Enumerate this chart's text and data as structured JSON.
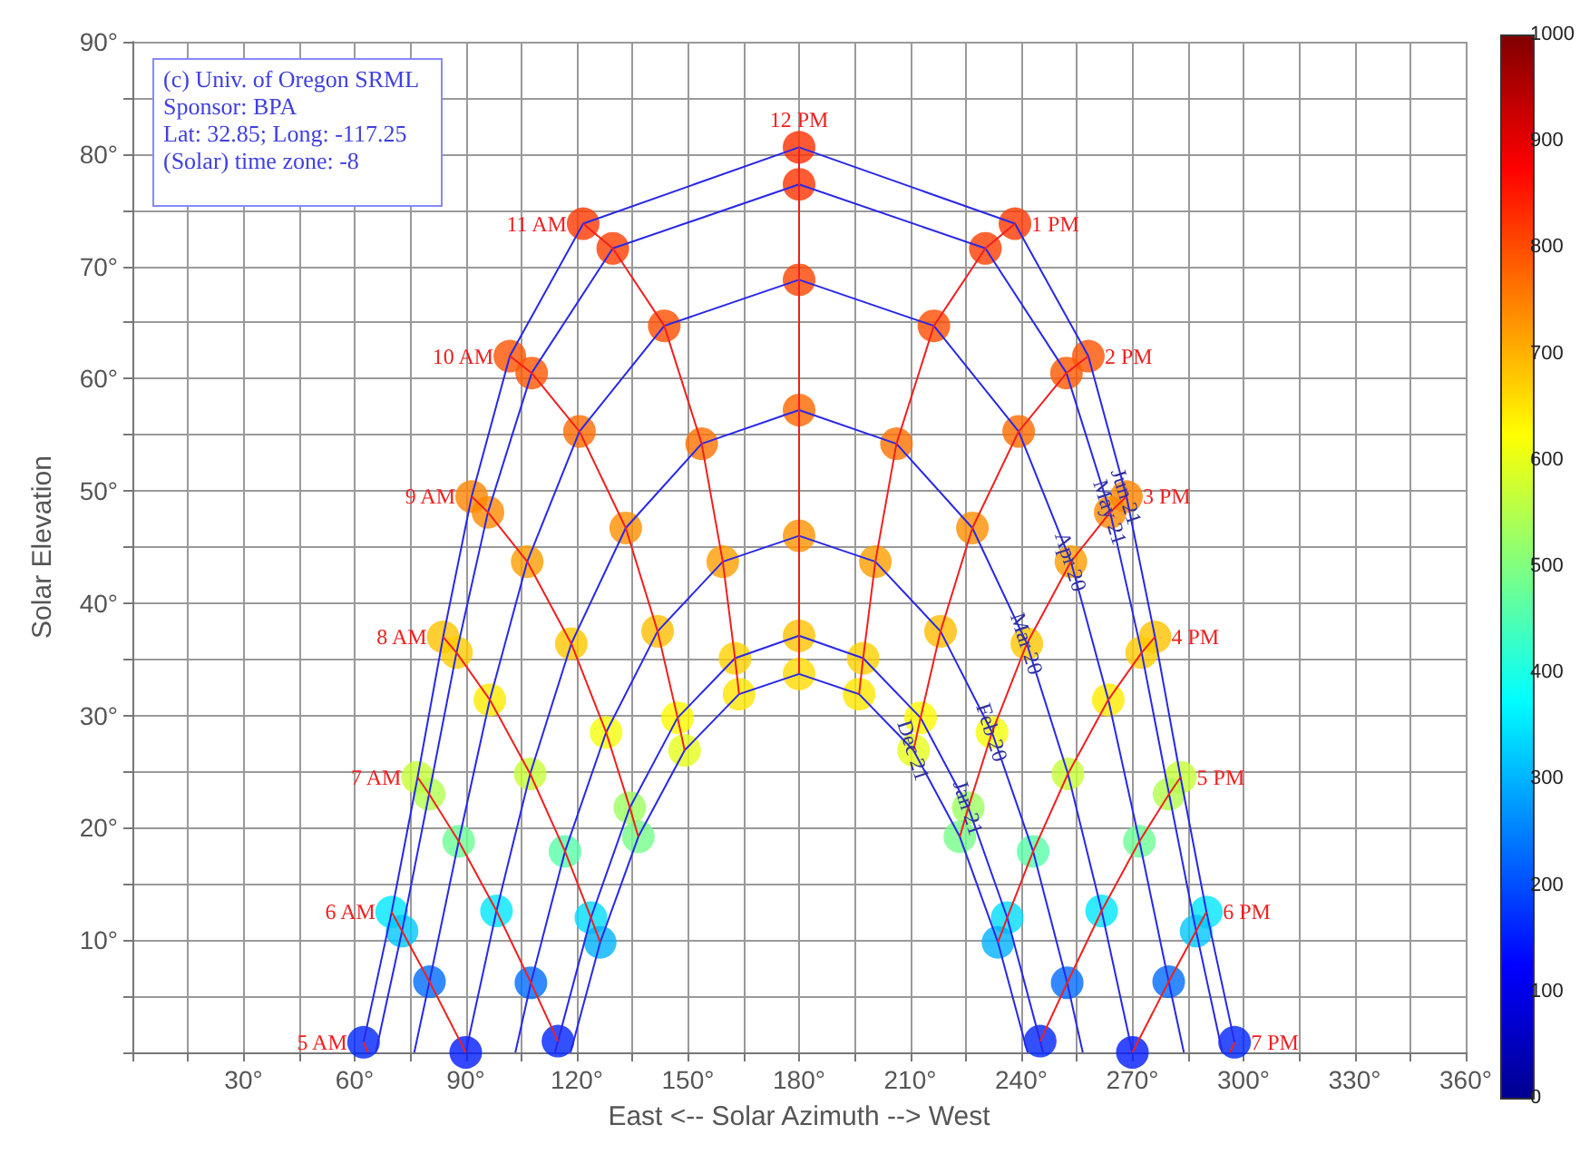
{
  "chart_data": {
    "type": "line",
    "xlabel": "East <-- Solar Azimuth --> West",
    "ylabel": "Solar Elevation",
    "annotations": [
      "(c) Univ. of Oregon SRML",
      "Sponsor: BPA",
      "Lat: 32.85; Long: -117.25",
      "(Solar) time zone: -8"
    ],
    "xlim": [
      0,
      360
    ],
    "xticks": [
      {
        "value": 0,
        "label": null
      },
      {
        "value": 15,
        "label": null
      },
      {
        "value": 30,
        "label": "30°"
      },
      {
        "value": 45,
        "label": null
      },
      {
        "value": 60,
        "label": "60°"
      },
      {
        "value": 75,
        "label": null
      },
      {
        "value": 90,
        "label": "90°"
      },
      {
        "value": 105,
        "label": null
      },
      {
        "value": 120,
        "label": "120°"
      },
      {
        "value": 135,
        "label": null
      },
      {
        "value": 150,
        "label": "150°"
      },
      {
        "value": 165,
        "label": null
      },
      {
        "value": 180,
        "label": "180°"
      },
      {
        "value": 195,
        "label": null
      },
      {
        "value": 210,
        "label": "210°"
      },
      {
        "value": 225,
        "label": null
      },
      {
        "value": 240,
        "label": "240°"
      },
      {
        "value": 255,
        "label": null
      },
      {
        "value": 270,
        "label": "270°"
      },
      {
        "value": 285,
        "label": null
      },
      {
        "value": 300,
        "label": "300°"
      },
      {
        "value": 315,
        "label": null
      },
      {
        "value": 330,
        "label": "330°"
      },
      {
        "value": 345,
        "label": null
      },
      {
        "value": 360,
        "label": "360°"
      }
    ],
    "ylim": [
      0,
      90
    ],
    "yticks": [
      {
        "value": 0,
        "label": null
      },
      {
        "value": 5,
        "label": null
      },
      {
        "value": 10,
        "label": "10°"
      },
      {
        "value": 15,
        "label": null
      },
      {
        "value": 20,
        "label": "20°"
      },
      {
        "value": 25,
        "label": null
      },
      {
        "value": 30,
        "label": "30°"
      },
      {
        "value": 35,
        "label": null
      },
      {
        "value": 40,
        "label": "40°"
      },
      {
        "value": 45,
        "label": null
      },
      {
        "value": 50,
        "label": "50°"
      },
      {
        "value": 55,
        "label": null
      },
      {
        "value": 60,
        "label": "60°"
      },
      {
        "value": 65,
        "label": null
      },
      {
        "value": 70,
        "label": "70°"
      },
      {
        "value": 75,
        "label": null
      },
      {
        "value": 80,
        "label": "80°"
      },
      {
        "value": 85,
        "label": null
      },
      {
        "value": 90,
        "label": "90°"
      }
    ],
    "clim": [
      0,
      1000
    ],
    "cticks": [
      0,
      100,
      200,
      300,
      400,
      500,
      600,
      700,
      800,
      900,
      1000
    ],
    "grid": true,
    "legend": false,
    "marker": "none",
    "line_style": "solid",
    "series": [
      {
        "type": "scatter",
        "marker": "circle",
        "x": [
          62.4,
          70.0,
          72.8,
          80.2,
          90,
          77.0,
          80.1,
          88.1,
          98.3,
          107.6,
          114.9,
          83.9,
          87.5,
          96.5,
          107.4,
          116.8,
          123.8,
          126.3,
          91.6,
          96.0,
          106.6,
          118.5,
          127.9,
          134.3,
          136.6,
          101.9,
          107.8,
          120.7,
          133.2,
          141.8,
          147.2,
          149.1,
          121.7,
          129.7,
          143.6,
          153.7,
          159.4,
          162.7,
          163.8,
          180,
          180,
          180,
          180,
          180,
          180,
          180,
          238.3,
          230.3,
          216.4,
          206.3,
          200.6,
          197.3,
          196.2,
          258.1,
          252.2,
          239.3,
          226.8,
          218.2,
          212.8,
          210.9,
          268.4,
          264.0,
          253.4,
          241.5,
          232.1,
          225.7,
          223.4,
          276.1,
          272.5,
          263.5,
          252.6,
          243.2,
          236.2,
          233.7,
          283.0,
          279.9,
          271.9,
          261.7,
          252.4,
          245.1,
          290.0,
          287.2,
          279.8,
          270.0,
          297.6
        ],
        "values": [
          0.9,
          12.5,
          10.8,
          6.3,
          0,
          24.5,
          23.0,
          18.8,
          12.6,
          6.2,
          1.0,
          37.0,
          35.6,
          31.4,
          24.8,
          17.9,
          12.0,
          9.8,
          49.5,
          48.1,
          43.7,
          36.4,
          28.5,
          21.8,
          19.2,
          62.0,
          60.5,
          55.3,
          46.7,
          37.5,
          29.8,
          26.9,
          73.8,
          71.6,
          64.7,
          54.2,
          43.7,
          35.1,
          31.9,
          80.6,
          77.3,
          68.8,
          57.2,
          46.0,
          37.1,
          33.7,
          73.8,
          71.6,
          64.7,
          54.2,
          43.7,
          35.1,
          31.9,
          62.0,
          60.5,
          55.3,
          46.7,
          37.5,
          29.8,
          26.9,
          49.5,
          48.1,
          43.7,
          36.4,
          28.5,
          21.8,
          19.2,
          37.0,
          35.6,
          31.4,
          24.8,
          17.9,
          12.0,
          9.8,
          24.5,
          23.0,
          18.8,
          12.6,
          6.2,
          1.0,
          12.5,
          10.8,
          6.3,
          0,
          0.9
        ],
        "colors": [
          "#0024ff",
          "#00e6ff",
          "#00c7ff",
          "#006cff",
          "#001aff",
          "#c7ff38",
          "#b3ff4d",
          "#6cff94",
          "#00e6ff",
          "#006cff",
          "#0024ff",
          "#ffc200",
          "#ffcc00",
          "#ffeb00",
          "#c7ff38",
          "#57ffa9",
          "#00dcff",
          "#00b3ff",
          "#ff8500",
          "#ff8a00",
          "#ff9e00",
          "#ffc700",
          "#f5ff0a",
          "#9eff61",
          "#76ff8a",
          "#ff5200",
          "#ff5700",
          "#ff6c00",
          "#ff8f00",
          "#ffbd00",
          "#fffa00",
          "#e6ff1a",
          "#ff3800",
          "#ff3d00",
          "#ff4d00",
          "#ff7100",
          "#ff9e00",
          "#ffd100",
          "#ffe600",
          "#ff2e00",
          "#ff3300",
          "#ff4300",
          "#ff6600",
          "#ff9400",
          "#ffc200",
          "#ffdb00",
          "#ff3800",
          "#ff3d00",
          "#ff4d00",
          "#ff7100",
          "#ff9e00",
          "#ffd100",
          "#ffe600",
          "#ff5200",
          "#ff5700",
          "#ff6c00",
          "#ff8f00",
          "#ffbd00",
          "#fffa00",
          "#e6ff1a",
          "#ff8500",
          "#ff8a00",
          "#ff9e00",
          "#ffc700",
          "#f5ff0a",
          "#9eff61",
          "#76ff8a",
          "#ffc200",
          "#ffcc00",
          "#ffeb00",
          "#c7ff38",
          "#57ffa9",
          "#00dcff",
          "#00b3ff",
          "#c7ff38",
          "#b3ff4d",
          "#6cff94",
          "#00e6ff",
          "#006cff",
          "#0024ff",
          "#00e6ff",
          "#00c7ff",
          "#006cff",
          "#001aff",
          "#0024ff"
        ]
      },
      {
        "name": "Jun 21",
        "color": "#2828e8",
        "x": [
          62.4,
          70.0,
          77.0,
          83.9,
          91.6,
          101.9,
          121.7,
          180,
          238.3,
          258.1,
          268.4,
          276.1,
          283.0,
          290.0,
          297.6
        ],
        "values": [
          0.9,
          12.5,
          24.5,
          37.0,
          49.5,
          62.0,
          73.8,
          80.6,
          73.8,
          62.0,
          49.5,
          37.0,
          24.5,
          12.5,
          0.9
        ]
      },
      {
        "name": "May 21",
        "color": "#2828e8",
        "x": [
          65.7,
          72.8,
          80.1,
          87.5,
          96.0,
          107.8,
          129.7,
          180,
          230.3,
          252.2,
          264.0,
          272.5,
          279.9,
          287.2,
          294.3
        ],
        "values": [
          0,
          10.8,
          23.0,
          35.6,
          48.1,
          60.5,
          71.6,
          77.3,
          71.6,
          60.5,
          48.1,
          35.6,
          23.0,
          10.8,
          0
        ]
      },
      {
        "name": "Apr 20",
        "color": "#2828e8",
        "x": [
          76.1,
          80.2,
          88.1,
          96.5,
          106.6,
          120.7,
          143.6,
          180,
          216.4,
          239.3,
          253.4,
          263.5,
          271.9,
          279.8,
          283.9
        ],
        "values": [
          0,
          6.3,
          18.8,
          31.4,
          43.7,
          55.3,
          64.7,
          68.8,
          64.7,
          55.3,
          43.7,
          31.4,
          18.8,
          6.3,
          0
        ]
      },
      {
        "name": "Mar 20",
        "color": "#2828e8",
        "x": [
          90,
          98.3,
          107.4,
          118.5,
          133.2,
          153.7,
          180,
          206.3,
          226.8,
          241.5,
          252.6,
          261.7,
          270
        ],
        "values": [
          0,
          12.6,
          24.8,
          36.4,
          46.7,
          54.2,
          57.2,
          54.2,
          46.7,
          36.4,
          24.8,
          12.6,
          0
        ]
      },
      {
        "name": "Feb 20",
        "color": "#2828e8",
        "x": [
          103.4,
          107.6,
          116.8,
          127.9,
          141.8,
          159.4,
          180,
          200.6,
          218.2,
          232.1,
          243.2,
          252.4,
          256.6
        ],
        "values": [
          0,
          6.2,
          17.9,
          28.5,
          37.5,
          43.7,
          46.0,
          43.7,
          37.5,
          28.5,
          17.9,
          6.2,
          0
        ]
      },
      {
        "name": "Jan 21",
        "color": "#2828e8",
        "x": [
          114.1,
          114.9,
          123.8,
          134.3,
          147.2,
          162.7,
          180,
          197.3,
          212.8,
          225.7,
          236.2,
          245.1,
          245.9
        ],
        "values": [
          0,
          1.0,
          12.0,
          21.8,
          29.8,
          35.1,
          37.1,
          35.1,
          29.8,
          21.8,
          12.0,
          1.0,
          0
        ]
      },
      {
        "name": "Dec 21",
        "color": "#2828e8",
        "x": [
          118.3,
          126.3,
          136.6,
          149.1,
          163.8,
          180,
          196.2,
          210.9,
          223.4,
          233.7,
          241.7
        ],
        "values": [
          0,
          9.8,
          19.2,
          26.9,
          31.9,
          33.7,
          31.9,
          26.9,
          19.2,
          9.8,
          0
        ]
      },
      {
        "name": "5 AM",
        "color": "#f02020",
        "x": [
          62.4,
          63.6
        ],
        "values": [
          0.9,
          0
        ]
      },
      {
        "name": "6 AM",
        "color": "#f02020",
        "x": [
          70.0,
          72.8,
          80.2,
          90
        ],
        "values": [
          12.5,
          10.8,
          6.3,
          0
        ]
      },
      {
        "name": "7 AM",
        "color": "#f02020",
        "x": [
          77.0,
          80.1,
          88.1,
          98.3,
          107.6,
          114.9
        ],
        "values": [
          24.5,
          23.0,
          18.8,
          12.6,
          6.2,
          1.0
        ]
      },
      {
        "name": "8 AM",
        "color": "#f02020",
        "x": [
          83.9,
          87.5,
          96.5,
          107.4,
          116.8,
          123.8,
          126.3
        ],
        "values": [
          37.0,
          35.6,
          31.4,
          24.8,
          17.9,
          12.0,
          9.8
        ]
      },
      {
        "name": "9 AM",
        "color": "#f02020",
        "x": [
          91.6,
          96.0,
          106.6,
          118.5,
          127.9,
          134.3,
          136.6
        ],
        "values": [
          49.5,
          48.1,
          43.7,
          36.4,
          28.5,
          21.8,
          19.2
        ]
      },
      {
        "name": "10 AM",
        "color": "#f02020",
        "x": [
          101.9,
          107.8,
          120.7,
          133.2,
          141.8,
          147.2,
          149.1
        ],
        "values": [
          62.0,
          60.5,
          55.3,
          46.7,
          37.5,
          29.8,
          26.9
        ]
      },
      {
        "name": "11 AM",
        "color": "#f02020",
        "x": [
          121.7,
          129.7,
          143.6,
          153.7,
          159.4,
          162.7,
          163.8
        ],
        "values": [
          73.8,
          71.6,
          64.7,
          54.2,
          43.7,
          35.1,
          31.9
        ]
      },
      {
        "name": "12 PM",
        "color": "#f02020",
        "x": [
          180,
          180,
          180,
          180,
          180,
          180,
          180
        ],
        "values": [
          80.6,
          77.3,
          68.8,
          57.2,
          46.0,
          37.1,
          33.7
        ]
      },
      {
        "name": "1 PM",
        "color": "#f02020",
        "x": [
          238.3,
          230.3,
          216.4,
          206.3,
          200.6,
          197.3,
          196.2
        ],
        "values": [
          73.8,
          71.6,
          64.7,
          54.2,
          43.7,
          35.1,
          31.9
        ]
      },
      {
        "name": "2 PM",
        "color": "#f02020",
        "x": [
          258.1,
          252.2,
          239.3,
          226.8,
          218.2,
          212.8,
          210.9
        ],
        "values": [
          62.0,
          60.5,
          55.3,
          46.7,
          37.5,
          29.8,
          26.9
        ]
      },
      {
        "name": "3 PM",
        "color": "#f02020",
        "x": [
          268.4,
          264.0,
          253.4,
          241.5,
          232.1,
          225.7,
          223.4
        ],
        "values": [
          49.5,
          48.1,
          43.7,
          36.4,
          28.5,
          21.8,
          19.2
        ]
      },
      {
        "name": "4 PM",
        "color": "#f02020",
        "x": [
          276.1,
          272.5,
          263.5,
          252.6,
          243.2,
          236.2,
          233.7
        ],
        "values": [
          37.0,
          35.6,
          31.4,
          24.8,
          17.9,
          12.0,
          9.8
        ]
      },
      {
        "name": "5 PM",
        "color": "#f02020",
        "x": [
          283.0,
          279.9,
          271.9,
          261.7,
          252.4,
          245.1
        ],
        "values": [
          24.5,
          23.0,
          18.8,
          12.6,
          6.2,
          1.0
        ]
      },
      {
        "name": "6 PM",
        "color": "#f02020",
        "x": [
          290.0,
          287.2,
          279.8,
          270.0
        ],
        "values": [
          12.5,
          10.8,
          6.3,
          0
        ]
      },
      {
        "name": "7 PM",
        "color": "#f02020",
        "x": [
          297.6,
          296.4
        ],
        "values": [
          0.9,
          0
        ]
      }
    ]
  }
}
